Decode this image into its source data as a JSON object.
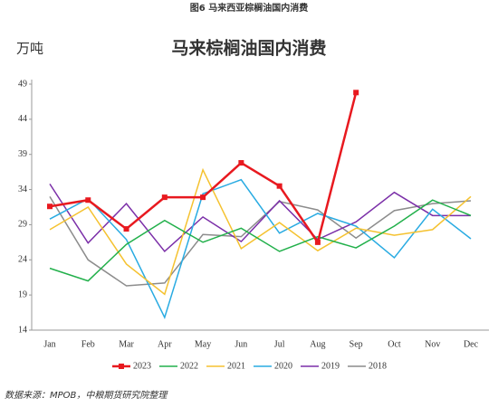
{
  "header": "图6 马来西亚棕榈油国内消费",
  "source": "数据来源：MPOB，中粮期货研究院整理",
  "chart_data": {
    "type": "line",
    "title": "马来棕榈油国内消费",
    "y_label": "万吨",
    "categories": [
      "Jan",
      "Feb",
      "Mar",
      "Apr",
      "May",
      "Jun",
      "Jul",
      "Aug",
      "Sep",
      "Oct",
      "Nov",
      "Dec"
    ],
    "ylim": [
      14,
      49
    ],
    "yticks": [
      14,
      19,
      24,
      29,
      34,
      39,
      44,
      49
    ],
    "grid": false,
    "legend": "bottom",
    "series": [
      {
        "name": "2023",
        "color": "#e8191f",
        "marker": "square",
        "values": [
          31.6,
          32.5,
          28.4,
          32.9,
          32.9,
          37.8,
          34.5,
          26.5,
          47.8,
          null,
          null,
          null
        ]
      },
      {
        "name": "2022",
        "color": "#22b04b",
        "values": [
          22.8,
          21.0,
          26.2,
          29.6,
          26.5,
          28.5,
          25.2,
          27.3,
          25.7,
          28.8,
          32.5,
          30.3
        ]
      },
      {
        "name": "2021",
        "color": "#f5c230",
        "values": [
          28.3,
          31.5,
          23.4,
          19.1,
          36.8,
          25.6,
          29.3,
          25.3,
          28.5,
          27.5,
          28.3,
          33.0
        ]
      },
      {
        "name": "2020",
        "color": "#29abe2",
        "values": [
          29.8,
          32.7,
          26.9,
          15.8,
          33.4,
          35.4,
          27.8,
          30.6,
          28.8,
          24.3,
          31.2,
          27.0
        ]
      },
      {
        "name": "2019",
        "color": "#7b2fa8",
        "values": [
          34.8,
          26.4,
          32.0,
          25.2,
          30.1,
          26.6,
          32.4,
          26.9,
          29.4,
          33.6,
          30.3,
          30.3
        ]
      },
      {
        "name": "2018",
        "color": "#8c8c8c",
        "values": [
          33.0,
          24.0,
          20.3,
          20.7,
          27.6,
          27.3,
          32.3,
          31.1,
          27.1,
          31.0,
          32.0,
          32.4
        ]
      }
    ]
  }
}
